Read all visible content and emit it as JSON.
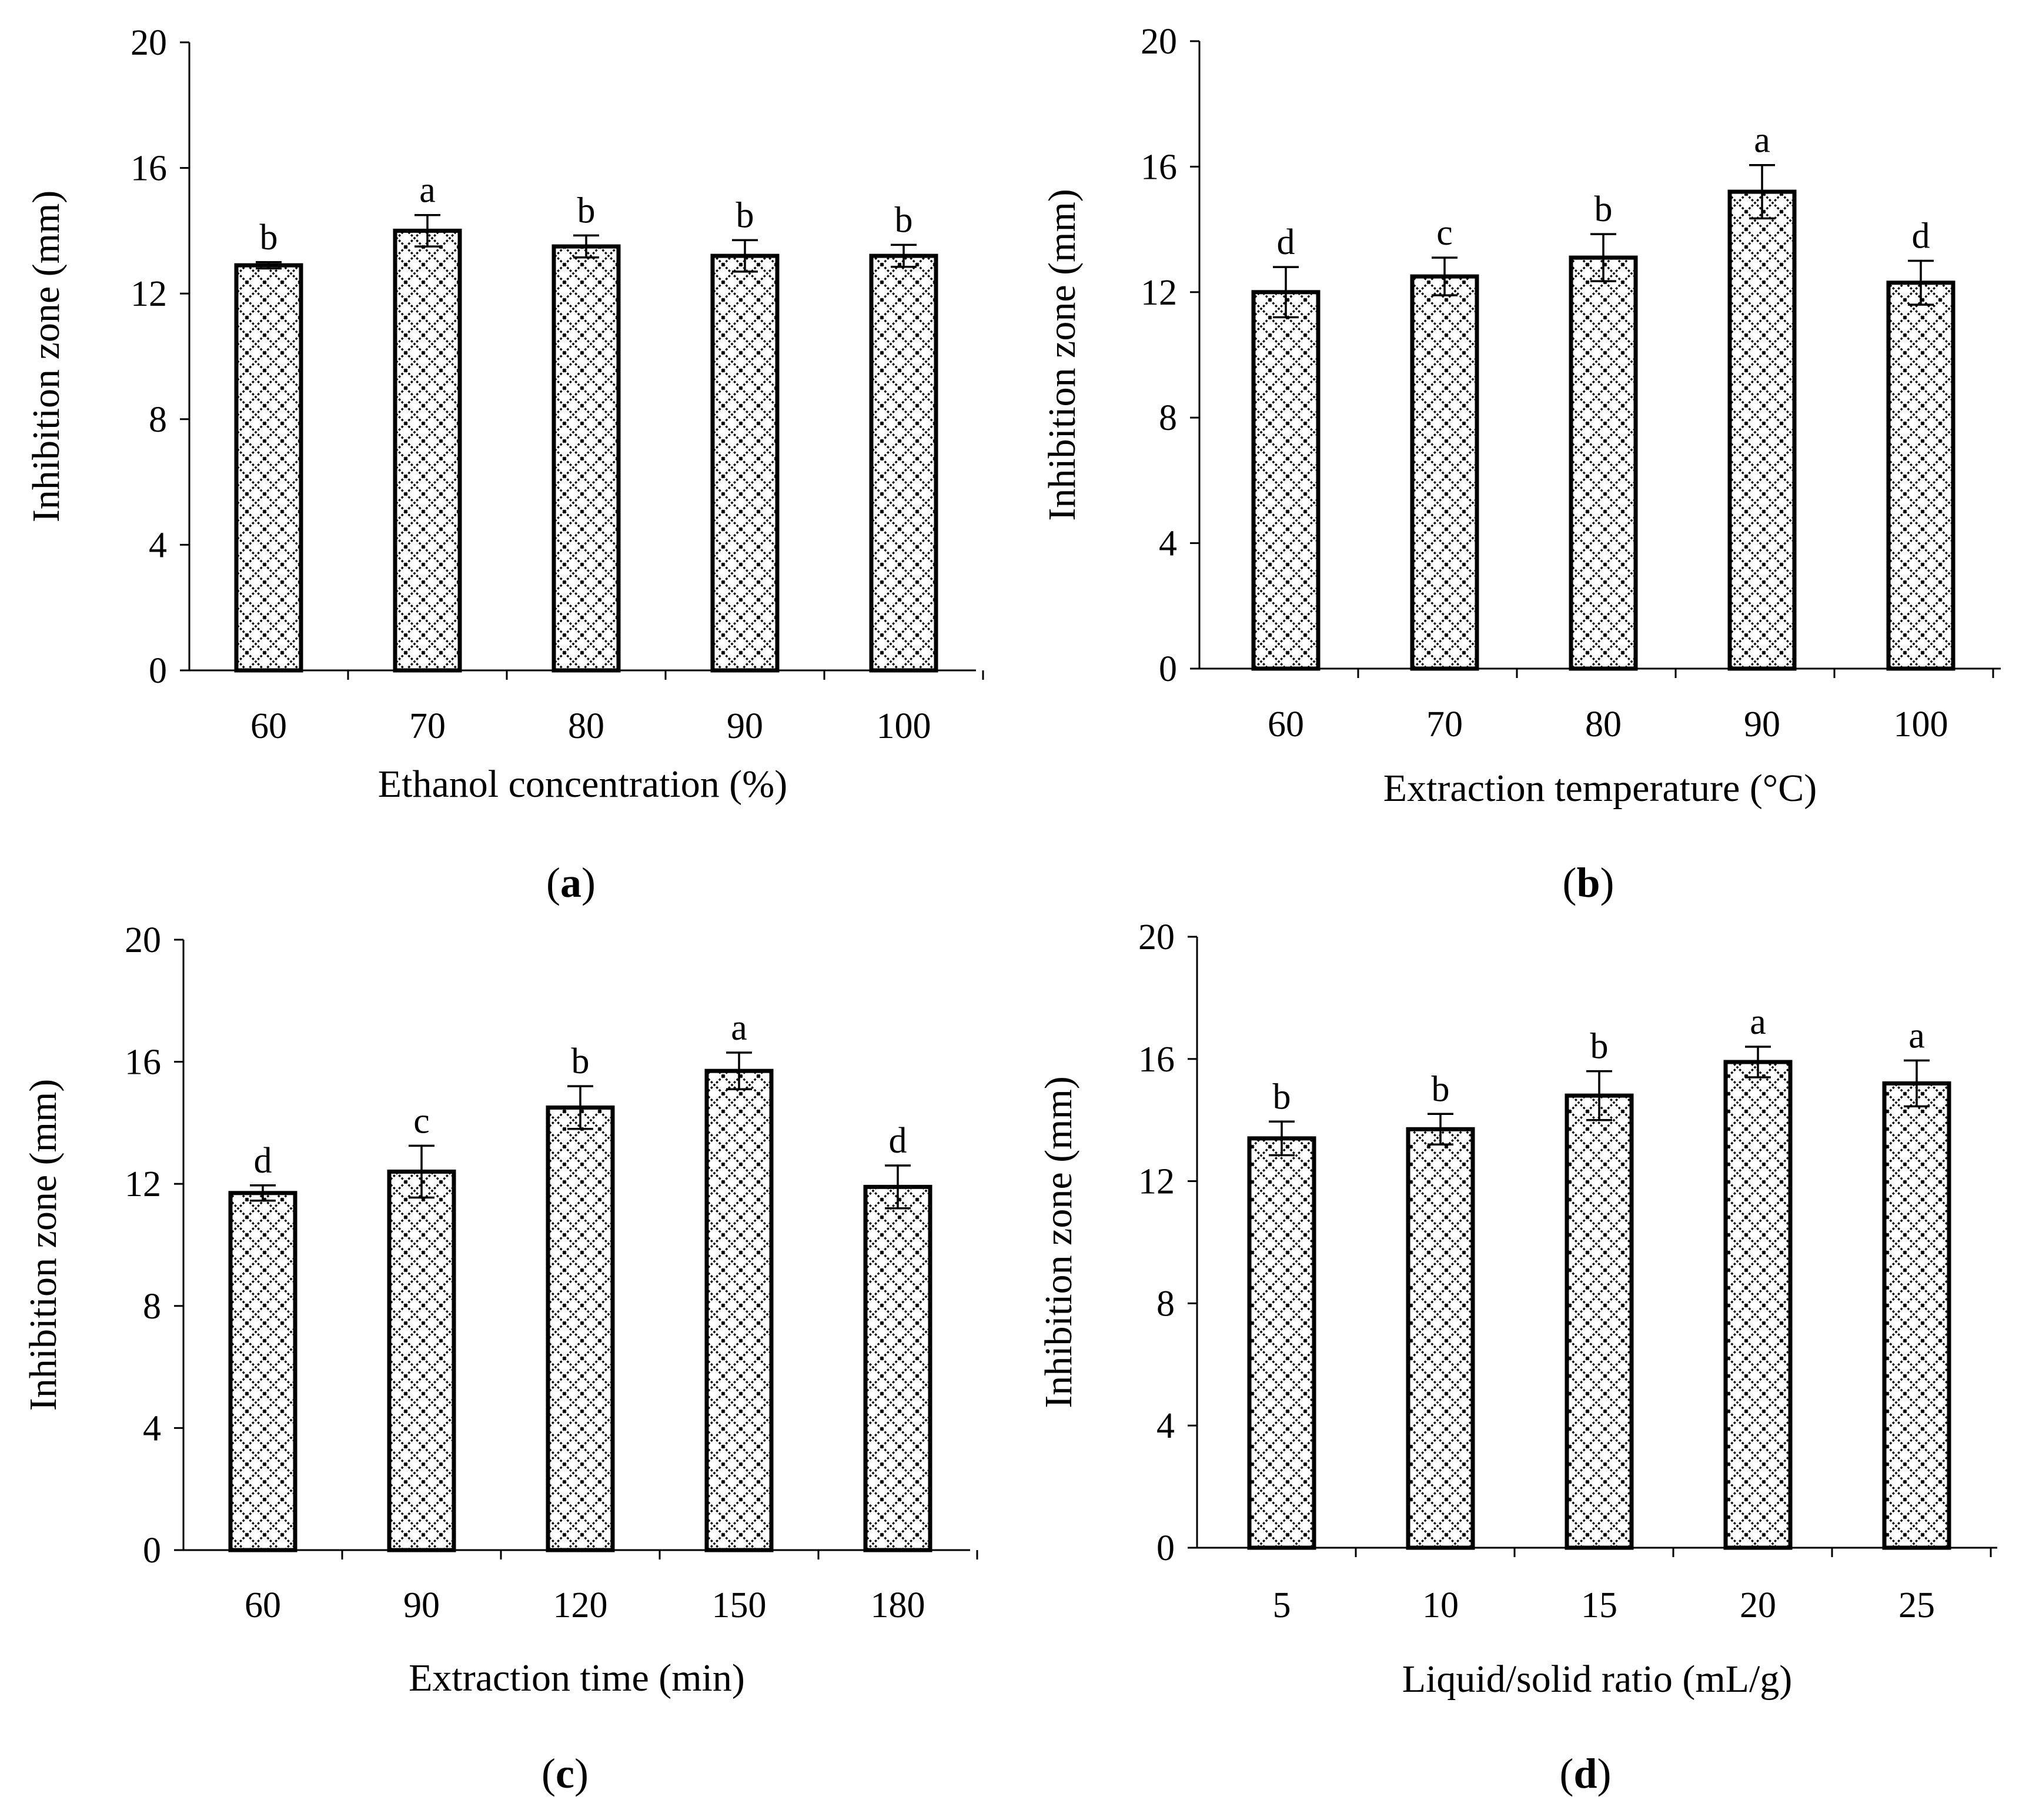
{
  "chart_data": [
    {
      "type": "bar",
      "panel": "a",
      "caption": "a",
      "xlabel": "Ethanol concentration (%)",
      "ylabel": "Inhibition zone (mm)",
      "ylim": [
        0,
        20
      ],
      "yticks": [
        "0",
        "4",
        "8",
        "12",
        "16",
        "20"
      ],
      "categories": [
        "60",
        "70",
        "80",
        "90",
        "100"
      ],
      "values": [
        12.9,
        14.0,
        13.5,
        13.2,
        13.2
      ],
      "errors": [
        0.1,
        0.5,
        0.35,
        0.5,
        0.35
      ],
      "significance": [
        "b",
        "a",
        "b",
        "b",
        "b"
      ]
    },
    {
      "type": "bar",
      "panel": "b",
      "caption": "b",
      "xlabel": "Extraction temperature (°C)",
      "ylabel": "Inhibition zone (mm)",
      "ylim": [
        0,
        20
      ],
      "yticks": [
        "0",
        "4",
        "8",
        "12",
        "16",
        "20"
      ],
      "categories": [
        "60",
        "70",
        "80",
        "90",
        "100"
      ],
      "values": [
        12.0,
        12.5,
        13.1,
        15.2,
        12.3
      ],
      "errors": [
        0.8,
        0.6,
        0.75,
        0.85,
        0.7
      ],
      "significance": [
        "d",
        "c",
        "b",
        "a",
        "d"
      ]
    },
    {
      "type": "bar",
      "panel": "c",
      "caption": "c",
      "xlabel": "Extraction time (min)",
      "ylabel": "Inhibition zone (mm)",
      "ylim": [
        0,
        20
      ],
      "yticks": [
        "0",
        "4",
        "8",
        "12",
        "16",
        "20"
      ],
      "categories": [
        "60",
        "90",
        "120",
        "150",
        "180"
      ],
      "values": [
        11.7,
        12.4,
        14.5,
        15.7,
        11.9
      ],
      "errors": [
        0.25,
        0.85,
        0.7,
        0.6,
        0.7
      ],
      "significance": [
        "d",
        "c",
        "b",
        "a",
        "d"
      ]
    },
    {
      "type": "bar",
      "panel": "d",
      "caption": "d",
      "xlabel": "Liquid/solid ratio (mL/g)",
      "ylabel": "Inhibition zone (mm)",
      "ylim": [
        0,
        20
      ],
      "yticks": [
        "0",
        "4",
        "8",
        "12",
        "16",
        "20"
      ],
      "categories": [
        "5",
        "10",
        "15",
        "20",
        "25"
      ],
      "values": [
        13.4,
        13.7,
        14.8,
        15.9,
        15.2
      ],
      "errors": [
        0.55,
        0.5,
        0.8,
        0.5,
        0.75
      ],
      "significance": [
        "b",
        "b",
        "b",
        "a",
        "a"
      ]
    }
  ]
}
